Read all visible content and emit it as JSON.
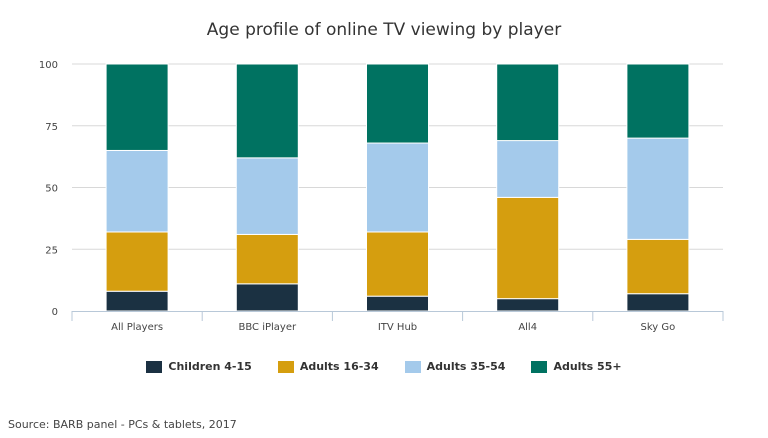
{
  "chart_data": {
    "type": "bar",
    "stacked": true,
    "title": "Age profile of online TV viewing by player",
    "xlabel": "",
    "ylabel": "",
    "ylim": [
      0,
      100
    ],
    "yticks": [
      0,
      25,
      50,
      75,
      100
    ],
    "grid": true,
    "legend_position": "bottom",
    "categories": [
      "All Players",
      "BBC iPlayer",
      "ITV Hub",
      "All4",
      "Sky Go"
    ],
    "series": [
      {
        "name": "Children 4-15",
        "color": "#1b3142",
        "values": [
          8,
          11,
          6,
          5,
          7
        ]
      },
      {
        "name": "Adults 16-34",
        "color": "#d59e0f",
        "values": [
          24,
          20,
          26,
          41,
          22
        ]
      },
      {
        "name": "Adults 35-54",
        "color": "#a4caeb",
        "values": [
          33,
          31,
          36,
          23,
          41
        ]
      },
      {
        "name": "Adults 55+",
        "color": "#007261",
        "values": [
          35,
          38,
          32,
          31,
          30
        ]
      }
    ]
  },
  "source": "Source: BARB panel - PCs & tablets, 2017"
}
